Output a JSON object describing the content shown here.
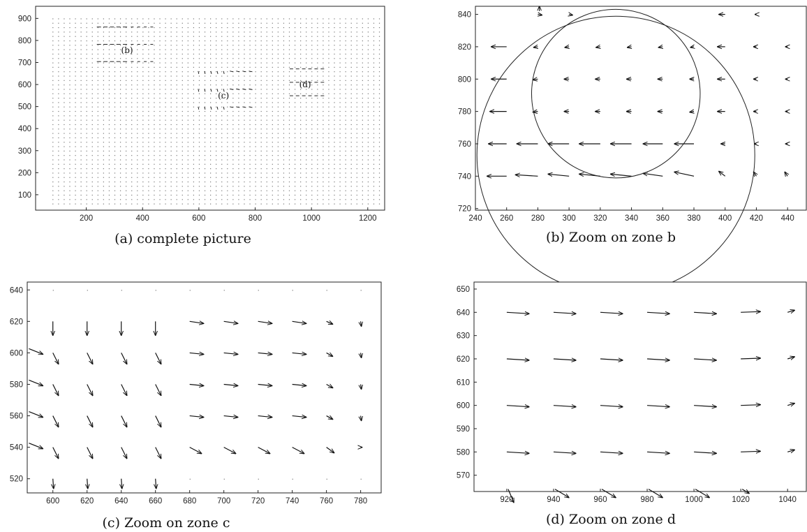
{
  "chart_data": [
    {
      "type": "quiver",
      "caption": "(a) complete picture",
      "xlim": [
        20,
        1260
      ],
      "ylim": [
        955,
        30
      ],
      "xticks": [
        200,
        400,
        600,
        800,
        1000,
        1200
      ],
      "yticks": [
        100,
        200,
        300,
        400,
        500,
        600,
        700,
        800,
        900
      ],
      "zones": [
        {
          "label": "(b)",
          "x": [
            240,
            450
          ],
          "y": [
            720,
            845
          ]
        },
        {
          "label": "(c)",
          "x": [
            585,
            790
          ],
          "y": [
            515,
            645
          ]
        },
        {
          "label": "(d)",
          "x": [
            910,
            1045
          ],
          "y": [
            565,
            655
          ]
        }
      ]
    },
    {
      "type": "quiver",
      "caption": "(b) Zoom on zone b",
      "xlim": [
        240,
        452
      ],
      "ylim": [
        845,
        719
      ],
      "xticks": [
        240,
        260,
        280,
        300,
        320,
        340,
        360,
        380,
        400,
        420,
        440
      ],
      "yticks": [
        720,
        740,
        760,
        780,
        800,
        820,
        840
      ],
      "ellipses": [
        {
          "cx": 330,
          "cy": 753,
          "rx": 89,
          "ry": 20
        },
        {
          "cx": 330,
          "cy": 791,
          "rx": 54,
          "ry": 16
        }
      ]
    },
    {
      "type": "quiver",
      "caption": "(c) Zoom on zone c",
      "xlim": [
        585,
        792
      ],
      "ylim": [
        645,
        511
      ],
      "xticks": [
        600,
        620,
        640,
        660,
        680,
        700,
        720,
        740,
        760,
        780
      ],
      "yticks": [
        520,
        540,
        560,
        580,
        600,
        620,
        640
      ]
    },
    {
      "type": "quiver",
      "caption": "(d) Zoom on zone d",
      "xlim": [
        906,
        1048
      ],
      "ylim": [
        653,
        563
      ],
      "xticks": [
        920,
        940,
        960,
        980,
        1000,
        1020,
        1040
      ],
      "yticks": [
        570,
        580,
        590,
        600,
        610,
        620,
        630,
        640,
        650
      ]
    }
  ]
}
